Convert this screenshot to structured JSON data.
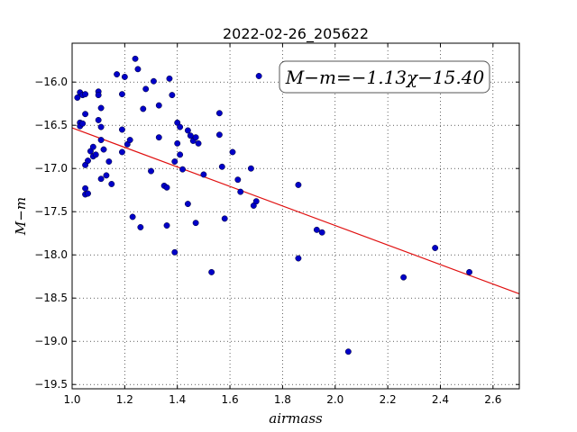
{
  "chart_data": {
    "type": "scatter",
    "title": "2022-02-26_205622",
    "xlabel": "airmass",
    "ylabel": "M−m",
    "xlim": [
      1.0,
      2.7
    ],
    "ylim": [
      -19.55,
      -15.55
    ],
    "y_inverted": true,
    "x_ticks": [
      1.0,
      1.2,
      1.4,
      1.6,
      1.8,
      2.0,
      2.2,
      2.4,
      2.6
    ],
    "x_tick_labels": [
      "1.0",
      "1.2",
      "1.4",
      "1.6",
      "1.8",
      "2.0",
      "2.2",
      "2.4",
      "2.6"
    ],
    "y_ticks": [
      -16.0,
      -16.5,
      -17.0,
      -17.5,
      -18.0,
      -18.5,
      -19.0,
      -19.5
    ],
    "y_tick_labels": [
      "−16.0",
      "−16.5",
      "−17.0",
      "−17.5",
      "−18.0",
      "−18.5",
      "−19.0",
      "−19.5"
    ],
    "grid": true,
    "annotation": "M−m=−1.13χ−15.40",
    "fit_line": {
      "slope": -1.13,
      "intercept": -15.4,
      "color": "#e01010"
    },
    "point_color": "#0000c8",
    "points": [
      [
        1.02,
        -16.18
      ],
      [
        1.03,
        -16.12
      ],
      [
        1.04,
        -16.15
      ],
      [
        1.05,
        -16.14
      ],
      [
        1.03,
        -16.47
      ],
      [
        1.03,
        -16.51
      ],
      [
        1.04,
        -16.48
      ],
      [
        1.05,
        -16.37
      ],
      [
        1.05,
        -16.96
      ],
      [
        1.06,
        -16.91
      ],
      [
        1.05,
        -17.23
      ],
      [
        1.05,
        -17.3
      ],
      [
        1.06,
        -17.29
      ],
      [
        1.07,
        -16.8
      ],
      [
        1.08,
        -16.75
      ],
      [
        1.08,
        -16.86
      ],
      [
        1.09,
        -16.84
      ],
      [
        1.1,
        -16.11
      ],
      [
        1.1,
        -16.15
      ],
      [
        1.11,
        -16.3
      ],
      [
        1.11,
        -16.52
      ],
      [
        1.1,
        -16.44
      ],
      [
        1.11,
        -16.67
      ],
      [
        1.11,
        -17.12
      ],
      [
        1.12,
        -16.78
      ],
      [
        1.13,
        -17.08
      ],
      [
        1.14,
        -16.92
      ],
      [
        1.15,
        -17.18
      ],
      [
        1.17,
        -15.91
      ],
      [
        1.19,
        -16.14
      ],
      [
        1.19,
        -16.55
      ],
      [
        1.19,
        -16.81
      ],
      [
        1.2,
        -15.94
      ],
      [
        1.21,
        -16.72
      ],
      [
        1.22,
        -16.67
      ],
      [
        1.23,
        -17.56
      ],
      [
        1.24,
        -15.73
      ],
      [
        1.25,
        -15.85
      ],
      [
        1.26,
        -17.68
      ],
      [
        1.27,
        -16.31
      ],
      [
        1.28,
        -16.08
      ],
      [
        1.3,
        -17.03
      ],
      [
        1.31,
        -15.99
      ],
      [
        1.33,
        -16.64
      ],
      [
        1.33,
        -16.27
      ],
      [
        1.35,
        -17.2
      ],
      [
        1.36,
        -17.22
      ],
      [
        1.36,
        -17.66
      ],
      [
        1.37,
        -15.96
      ],
      [
        1.38,
        -16.15
      ],
      [
        1.39,
        -17.97
      ],
      [
        1.39,
        -16.92
      ],
      [
        1.4,
        -16.71
      ],
      [
        1.4,
        -16.47
      ],
      [
        1.41,
        -16.52
      ],
      [
        1.41,
        -16.84
      ],
      [
        1.42,
        -17.01
      ],
      [
        1.44,
        -16.56
      ],
      [
        1.44,
        -17.41
      ],
      [
        1.45,
        -16.62
      ],
      [
        1.46,
        -16.68
      ],
      [
        1.47,
        -16.64
      ],
      [
        1.47,
        -17.63
      ],
      [
        1.48,
        -16.71
      ],
      [
        1.5,
        -17.07
      ],
      [
        1.53,
        -18.2
      ],
      [
        1.56,
        -16.36
      ],
      [
        1.56,
        -16.61
      ],
      [
        1.57,
        -16.98
      ],
      [
        1.58,
        -17.58
      ],
      [
        1.61,
        -16.81
      ],
      [
        1.63,
        -17.13
      ],
      [
        1.64,
        -17.27
      ],
      [
        1.68,
        -17.0
      ],
      [
        1.69,
        -17.43
      ],
      [
        1.7,
        -17.38
      ],
      [
        1.71,
        -15.93
      ],
      [
        1.86,
        -17.19
      ],
      [
        1.86,
        -18.04
      ],
      [
        1.93,
        -17.71
      ],
      [
        1.95,
        -17.74
      ],
      [
        2.05,
        -19.12
      ],
      [
        2.26,
        -18.26
      ],
      [
        2.38,
        -17.92
      ],
      [
        2.51,
        -18.2
      ]
    ]
  }
}
